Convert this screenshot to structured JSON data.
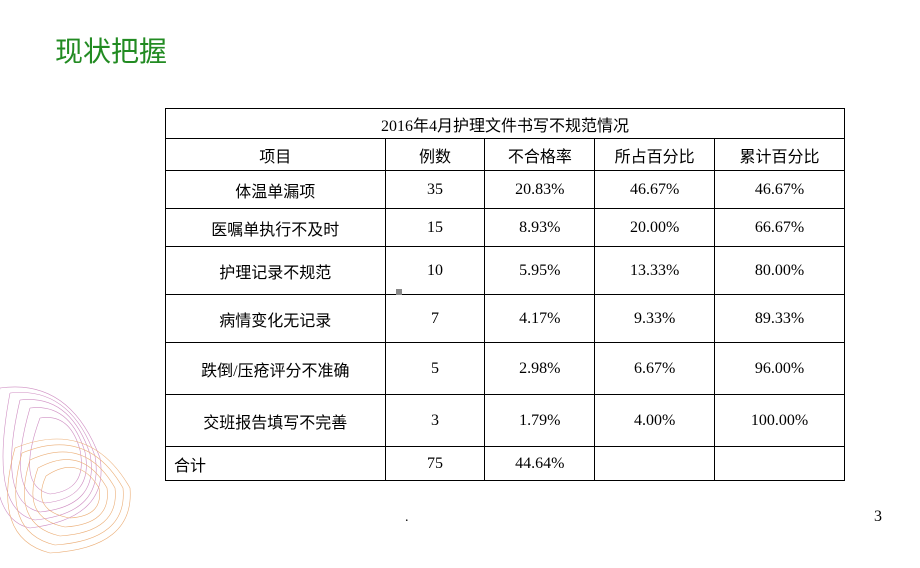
{
  "title": "现状把握",
  "table": {
    "caption": "2016年4月护理文件书写不规范情况",
    "headers": [
      "项目",
      "例数",
      "不合格率",
      "所占百分比",
      "累计百分比"
    ],
    "rows": [
      {
        "item": "体温单漏项",
        "count": "35",
        "rate": "20.83%",
        "pct": "46.67%",
        "cum": "46.67%",
        "h": "data-row"
      },
      {
        "item": "医嘱单执行不及时",
        "count": "15",
        "rate": "8.93%",
        "pct": "20.00%",
        "cum": "66.67%",
        "h": "data-row"
      },
      {
        "item": "护理记录不规范",
        "count": "10",
        "rate": "5.95%",
        "pct": "13.33%",
        "cum": "80.00%",
        "h": "data-row tall"
      },
      {
        "item": "病情变化无记录",
        "count": "7",
        "rate": "4.17%",
        "pct": "9.33%",
        "cum": "89.33%",
        "h": "data-row tall"
      },
      {
        "item": "跌倒/压疮评分不准确",
        "count": "5",
        "rate": "2.98%",
        "pct": "6.67%",
        "cum": "96.00%",
        "h": "data-row taller"
      },
      {
        "item": "交班报告填写不完善",
        "count": "3",
        "rate": "1.79%",
        "pct": "4.00%",
        "cum": "100.00%",
        "h": "data-row taller"
      }
    ],
    "sum": {
      "item": "合计",
      "count": "75",
      "rate": "44.64%",
      "pct": "",
      "cum": ""
    }
  },
  "page_number": "3",
  "center_mark": ".",
  "colors": {
    "title": "#228B22",
    "border": "#000000",
    "text": "#000000",
    "deco_stroke1": "#c77bb8",
    "deco_stroke2": "#e8a05f"
  }
}
